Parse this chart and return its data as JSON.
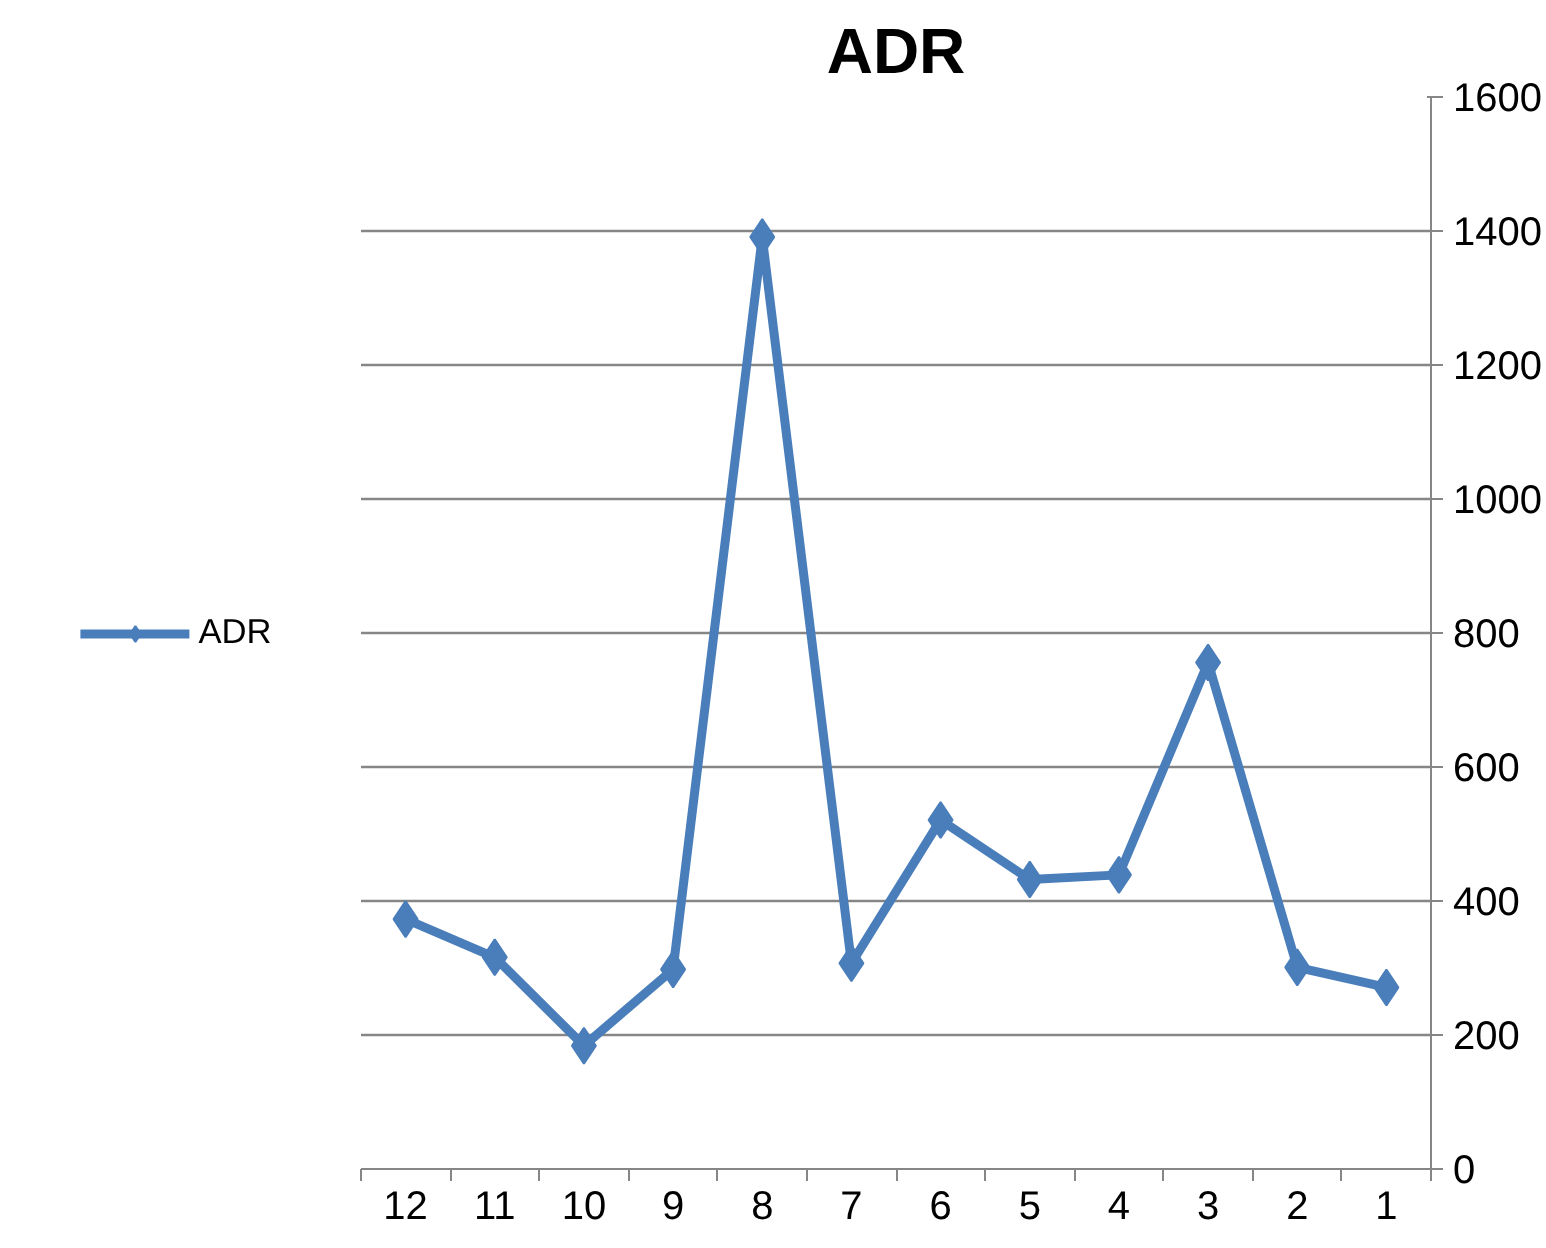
{
  "chart_data": {
    "type": "line",
    "title": "ADR",
    "categories": [
      "12",
      "11",
      "10",
      "9",
      "8",
      "7",
      "6",
      "5",
      "4",
      "3",
      "2",
      "1"
    ],
    "series": [
      {
        "name": "ADR",
        "color": "#4a7ebb",
        "values": [
          373,
          316,
          184,
          298,
          1391,
          307,
          521,
          432,
          439,
          756,
          301,
          271
        ]
      }
    ],
    "ylim": [
      0,
      1600
    ],
    "yticks": [
      0,
      200,
      400,
      600,
      800,
      1000,
      1200,
      1400,
      1600
    ],
    "grid": "y",
    "legend": "left",
    "marker": "diamond",
    "line_style": "solid"
  }
}
